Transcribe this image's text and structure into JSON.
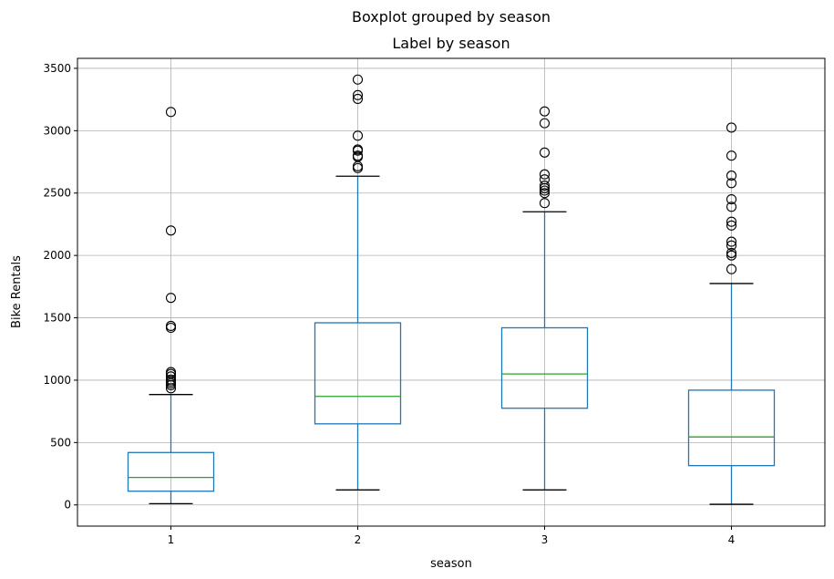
{
  "chart_data": {
    "type": "boxplot",
    "suptitle": "Boxplot grouped by season",
    "title": "Label by season",
    "xlabel": "season",
    "ylabel": "Bike Rentals",
    "categories": [
      "1",
      "2",
      "3",
      "4"
    ],
    "yticks": [
      0,
      500,
      1000,
      1500,
      2000,
      2500,
      3000,
      3500
    ],
    "ylim": [
      -170,
      3580
    ],
    "grid": true,
    "colors": {
      "box": "#1f77b4",
      "median": "#2ca02c",
      "whisker_cap": "#000000",
      "flier": "#000000",
      "grid": "#b0b0b0"
    },
    "boxes": [
      {
        "category": "1",
        "whislo": 10,
        "q1": 110,
        "median": 220,
        "q3": 420,
        "whishi": 885,
        "fliers": [
          935,
          960,
          975,
          990,
          1005,
          1030,
          1050,
          1065,
          1420,
          1435,
          1660,
          2200,
          3150
        ]
      },
      {
        "category": "2",
        "whislo": 120,
        "q1": 650,
        "median": 870,
        "q3": 1460,
        "whishi": 2635,
        "fliers": [
          2700,
          2715,
          2790,
          2800,
          2840,
          2850,
          2960,
          3255,
          3285,
          3410
        ]
      },
      {
        "category": "3",
        "whislo": 120,
        "q1": 775,
        "median": 1050,
        "q3": 1420,
        "whishi": 2350,
        "fliers": [
          2420,
          2500,
          2520,
          2540,
          2560,
          2610,
          2650,
          2825,
          3060,
          3155
        ]
      },
      {
        "category": "4",
        "whislo": 5,
        "q1": 315,
        "median": 545,
        "q3": 920,
        "whishi": 1775,
        "fliers": [
          1890,
          2000,
          2020,
          2080,
          2110,
          2240,
          2270,
          2390,
          2450,
          2580,
          2640,
          2800,
          3025
        ]
      }
    ]
  }
}
